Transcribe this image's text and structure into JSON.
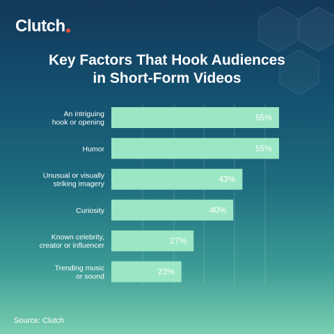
{
  "brand": {
    "name": "Clutch"
  },
  "header": {
    "title_line1": "Key Factors That Hook Audiences",
    "title_line2": "in Short-Form Videos"
  },
  "footer": {
    "source": "Source: Clutch"
  },
  "colors": {
    "bar": "#9be6c4",
    "bar_label": "#ffffff",
    "accent": "#e8533b"
  },
  "chart_data": {
    "type": "bar",
    "orientation": "horizontal",
    "title": "Key Factors That Hook Audiences in Short-Form Videos",
    "categories": [
      [
        "An intriguing",
        "hook or opening"
      ],
      [
        "Humor"
      ],
      [
        "Unusual or visually",
        "striking imagery"
      ],
      [
        "Curiosity"
      ],
      [
        "Known celebrity,",
        "creator or influencer"
      ],
      [
        "Trending music",
        "or sound"
      ]
    ],
    "values": [
      55,
      55,
      43,
      40,
      27,
      23
    ],
    "value_labels": [
      "55%",
      "55%",
      "43%",
      "40%",
      "27%",
      "23%"
    ],
    "xlim": [
      0,
      55
    ],
    "grid": true,
    "xlabel": "",
    "ylabel": ""
  }
}
